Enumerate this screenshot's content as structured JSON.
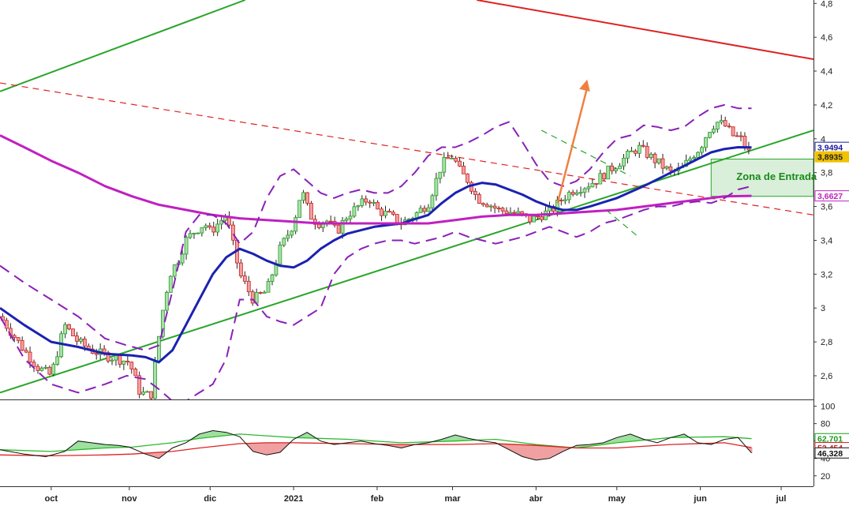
{
  "chart_data": [
    {
      "type": "candlestick",
      "title": "",
      "xlabel": "",
      "ylabel": "",
      "x_ticks": [
        "oct",
        "nov",
        "dic",
        "2021",
        "feb",
        "mar",
        "abr",
        "may",
        "jun",
        "jul"
      ],
      "x_tick_days": [
        -90,
        -61,
        -31,
        0,
        31,
        59,
        90,
        120,
        151,
        181
      ],
      "xlim_days": [
        -109,
        193
      ],
      "y_ticks": [
        "2,6",
        "2,8",
        "3",
        "3,2",
        "3,4",
        "3,6",
        "3,8",
        "4",
        "4,2",
        "4,4",
        "4,6",
        "4,8"
      ],
      "y_tick_values": [
        2.6,
        2.8,
        3.0,
        3.2,
        3.4,
        3.6,
        3.8,
        4.0,
        4.2,
        4.4,
        4.6,
        4.8
      ],
      "ylim": [
        2.46,
        4.82
      ],
      "grid": false,
      "price_badges": [
        {
          "label": "3,9494",
          "value": 3.9494,
          "color": "#1a1aa0"
        },
        {
          "label": "3,8935",
          "value": 3.8935,
          "color": "#f2c200"
        },
        {
          "label": "3,6627",
          "value": 3.6627,
          "color": "#c020c0"
        }
      ],
      "close_path": {
        "days": [
          -109,
          -100,
          -95,
          -90,
          -85,
          -80,
          -75,
          -70,
          -65,
          -61,
          -57,
          -53,
          -49,
          -46,
          -43,
          -40,
          -37,
          -33,
          -31,
          -28,
          -25,
          -20,
          -15,
          -10,
          -5,
          0,
          3,
          6,
          9,
          12,
          16,
          20,
          24,
          28,
          31,
          35,
          40,
          45,
          50,
          55,
          59,
          62,
          65,
          68,
          72,
          76,
          80,
          84,
          88,
          92,
          96,
          100,
          104,
          108,
          112,
          116,
          120,
          124,
          128,
          132,
          136,
          140,
          144,
          148,
          151,
          154,
          157,
          160,
          163,
          166,
          170
        ],
        "values": [
          2.95,
          2.75,
          2.65,
          2.6,
          2.9,
          2.8,
          2.75,
          2.72,
          2.7,
          2.68,
          2.5,
          2.48,
          2.95,
          3.2,
          3.28,
          3.4,
          3.45,
          3.5,
          3.45,
          3.5,
          3.55,
          3.2,
          3.05,
          3.1,
          3.35,
          3.5,
          3.7,
          3.55,
          3.5,
          3.52,
          3.45,
          3.55,
          3.6,
          3.65,
          3.58,
          3.55,
          3.5,
          3.55,
          3.62,
          3.85,
          3.9,
          3.8,
          3.75,
          3.65,
          3.62,
          3.58,
          3.57,
          3.55,
          3.52,
          3.55,
          3.58,
          3.65,
          3.7,
          3.72,
          3.75,
          3.8,
          3.85,
          3.9,
          3.95,
          3.9,
          3.85,
          3.8,
          3.82,
          3.9,
          3.95,
          4.05,
          4.1,
          4.08,
          4.02,
          4.0,
          3.89
        ]
      },
      "series": [
        {
          "name": "",
          "color": "#1a22b0",
          "style": "solid",
          "days": [
            -109,
            -100,
            -90,
            -80,
            -70,
            -60,
            -55,
            -50,
            -45,
            -40,
            -35,
            -30,
            -25,
            -20,
            -15,
            -10,
            -5,
            0,
            5,
            10,
            15,
            20,
            25,
            30,
            40,
            50,
            55,
            60,
            65,
            70,
            75,
            80,
            85,
            90,
            95,
            100,
            105,
            110,
            120,
            130,
            140,
            150,
            155,
            160,
            165,
            170
          ],
          "values": [
            3.0,
            2.9,
            2.8,
            2.77,
            2.73,
            2.72,
            2.71,
            2.68,
            2.75,
            2.9,
            3.05,
            3.2,
            3.3,
            3.35,
            3.32,
            3.28,
            3.25,
            3.24,
            3.28,
            3.35,
            3.4,
            3.44,
            3.46,
            3.48,
            3.5,
            3.55,
            3.62,
            3.68,
            3.72,
            3.74,
            3.73,
            3.7,
            3.67,
            3.63,
            3.6,
            3.58,
            3.58,
            3.6,
            3.65,
            3.72,
            3.8,
            3.88,
            3.92,
            3.94,
            3.95,
            3.9494
          ]
        },
        {
          "name": "",
          "color": "#c020c0",
          "style": "solid",
          "days": [
            -109,
            -100,
            -90,
            -80,
            -70,
            -60,
            -50,
            -40,
            -30,
            -20,
            -10,
            0,
            10,
            20,
            30,
            40,
            50,
            60,
            70,
            80,
            90,
            100,
            110,
            120,
            130,
            140,
            150,
            160,
            170
          ],
          "values": [
            4.02,
            3.95,
            3.87,
            3.8,
            3.72,
            3.66,
            3.61,
            3.58,
            3.55,
            3.53,
            3.52,
            3.51,
            3.5,
            3.5,
            3.5,
            3.5,
            3.5,
            3.52,
            3.54,
            3.55,
            3.55,
            3.56,
            3.57,
            3.58,
            3.6,
            3.62,
            3.64,
            3.66,
            3.6627
          ]
        },
        {
          "name": "",
          "color": "#8a20b8",
          "style": "dashed",
          "days": [
            -109,
            -100,
            -90,
            -80,
            -70,
            -62,
            -55,
            -50,
            -45,
            -40,
            -35,
            -30,
            -25,
            -20,
            -15,
            -10,
            -5,
            0,
            5,
            10,
            15,
            20,
            25,
            30,
            35,
            40,
            45,
            50,
            55,
            60,
            65,
            70,
            75,
            80,
            85,
            90,
            95,
            100,
            105,
            110,
            115,
            120,
            125,
            130,
            135,
            140,
            145,
            150,
            155,
            160,
            165,
            170
          ],
          "values": [
            3.25,
            3.15,
            3.05,
            2.95,
            2.82,
            2.78,
            2.75,
            2.78,
            3.1,
            3.45,
            3.55,
            3.55,
            3.5,
            3.38,
            3.45,
            3.65,
            3.78,
            3.82,
            3.75,
            3.68,
            3.65,
            3.68,
            3.7,
            3.68,
            3.68,
            3.72,
            3.8,
            3.9,
            3.95,
            3.95,
            3.98,
            4.02,
            4.07,
            4.1,
            3.98,
            3.85,
            3.75,
            3.72,
            3.75,
            3.82,
            3.92,
            4.0,
            4.02,
            4.08,
            4.07,
            4.05,
            4.07,
            4.13,
            4.18,
            4.2,
            4.18,
            4.18
          ]
        },
        {
          "name": "",
          "color": "#8a20b8",
          "style": "dashed",
          "days": [
            -109,
            -100,
            -90,
            -80,
            -70,
            -62,
            -55,
            -50,
            -45,
            -40,
            -35,
            -30,
            -25,
            -20,
            -15,
            -10,
            -5,
            0,
            5,
            10,
            15,
            20,
            25,
            30,
            35,
            40,
            45,
            50,
            55,
            60,
            65,
            70,
            75,
            80,
            85,
            90,
            95,
            100,
            105,
            110,
            115,
            120,
            125,
            130,
            135,
            140,
            145,
            150,
            155,
            160,
            165,
            170
          ],
          "values": [
            2.95,
            2.7,
            2.55,
            2.5,
            2.55,
            2.6,
            2.58,
            2.52,
            2.45,
            2.45,
            2.5,
            2.55,
            2.7,
            3.05,
            3.05,
            2.95,
            2.92,
            2.9,
            2.95,
            3.0,
            3.2,
            3.3,
            3.35,
            3.38,
            3.4,
            3.4,
            3.38,
            3.4,
            3.42,
            3.45,
            3.42,
            3.4,
            3.38,
            3.4,
            3.42,
            3.45,
            3.48,
            3.45,
            3.42,
            3.45,
            3.5,
            3.52,
            3.55,
            3.58,
            3.6,
            3.6,
            3.62,
            3.63,
            3.62,
            3.65,
            3.7,
            3.72
          ]
        }
      ],
      "trendlines": [
        {
          "color": "#2aa52a",
          "style": "solid",
          "points": [
            [
              -109,
              2.5
            ],
            [
              193,
              4.05
            ]
          ]
        },
        {
          "color": "#2aa52a",
          "style": "solid",
          "points": [
            [
              -109,
              4.28
            ],
            [
              -18,
              4.82
            ]
          ]
        },
        {
          "color": "#dd2222",
          "style": "solid",
          "points": [
            [
              68,
              4.82
            ],
            [
              193,
              4.47
            ]
          ]
        },
        {
          "color": "#dd2222",
          "style": "dashed",
          "points": [
            [
              -109,
              4.33
            ],
            [
              193,
              3.55
            ]
          ]
        },
        {
          "color": "#2aa52a",
          "style": "dashed",
          "points": [
            [
              92,
              4.05
            ],
            [
              125,
              3.78
            ]
          ]
        },
        {
          "color": "#2aa52a",
          "style": "dashed",
          "points": [
            [
              116,
              3.58
            ],
            [
              128,
              3.42
            ]
          ]
        }
      ],
      "arrow": {
        "from": [
          98,
          3.62
        ],
        "to": [
          109,
          4.35
        ],
        "color": "#f08040"
      },
      "zone": {
        "label": "Zona de Entrada",
        "x_days": [
          155,
          193
        ],
        "y_range": [
          3.66,
          3.88
        ],
        "color": "#2aa52a"
      }
    },
    {
      "type": "line",
      "title": "",
      "xlabel": "",
      "ylabel": "",
      "y_ticks": [
        "100",
        "80",
        "60",
        "40",
        "20"
      ],
      "y_tick_values": [
        100,
        80,
        60,
        40,
        20
      ],
      "ylim": [
        8,
        106
      ],
      "grid": false,
      "price_badges": [
        {
          "label": "62,701",
          "value": 62.701,
          "color": "#1a9a1a"
        },
        {
          "label": "52,454",
          "value": 52.454,
          "color": "#dd2222"
        },
        {
          "label": "46,328",
          "value": 46.328,
          "color": "#111111"
        }
      ],
      "series": [
        {
          "name": "",
          "color": "#111111",
          "days": [
            -109,
            -100,
            -92,
            -85,
            -80,
            -75,
            -70,
            -65,
            -61,
            -55,
            -50,
            -45,
            -40,
            -35,
            -30,
            -25,
            -20,
            -15,
            -10,
            -5,
            0,
            5,
            10,
            15,
            20,
            25,
            30,
            35,
            40,
            45,
            50,
            55,
            60,
            65,
            70,
            75,
            80,
            85,
            90,
            95,
            100,
            105,
            110,
            115,
            120,
            125,
            130,
            135,
            140,
            145,
            150,
            155,
            160,
            165,
            170
          ],
          "values": [
            50,
            45,
            42,
            48,
            60,
            58,
            56,
            55,
            53,
            45,
            40,
            52,
            58,
            68,
            72,
            70,
            65,
            48,
            44,
            47,
            62,
            70,
            60,
            56,
            58,
            60,
            57,
            55,
            52,
            56,
            58,
            62,
            67,
            63,
            60,
            58,
            50,
            42,
            38,
            40,
            48,
            55,
            56,
            58,
            64,
            68,
            62,
            58,
            64,
            68,
            58,
            56,
            62,
            64,
            46.328
          ]
        },
        {
          "name": "",
          "color": "#2aba2a",
          "days": [
            -109,
            -90,
            -70,
            -60,
            -45,
            -35,
            -20,
            -10,
            0,
            20,
            40,
            60,
            75,
            90,
            105,
            120,
            140,
            160,
            170
          ],
          "values": [
            50,
            48,
            52,
            53,
            58,
            63,
            68,
            66,
            64,
            62,
            58,
            60,
            62,
            56,
            52,
            58,
            64,
            65,
            62.701
          ]
        },
        {
          "name": "",
          "color": "#dd2222",
          "days": [
            -109,
            -90,
            -70,
            -60,
            -45,
            -35,
            -20,
            -10,
            0,
            20,
            40,
            60,
            75,
            90,
            105,
            120,
            140,
            160,
            170
          ],
          "values": [
            44,
            43,
            44,
            45,
            48,
            52,
            57,
            58,
            58,
            57,
            56,
            56,
            57,
            55,
            52,
            52,
            56,
            58,
            52.454
          ]
        }
      ]
    }
  ],
  "colors": {
    "candle_up": "#2a9a2a",
    "candle_down": "#d02020",
    "candle_up_fill": "#a8e0a8",
    "candle_down_fill": "#f0a0a0",
    "axis": "#333333",
    "osc_pos_fill": "#9ee09e",
    "osc_neg_fill": "#f0a0a0"
  }
}
